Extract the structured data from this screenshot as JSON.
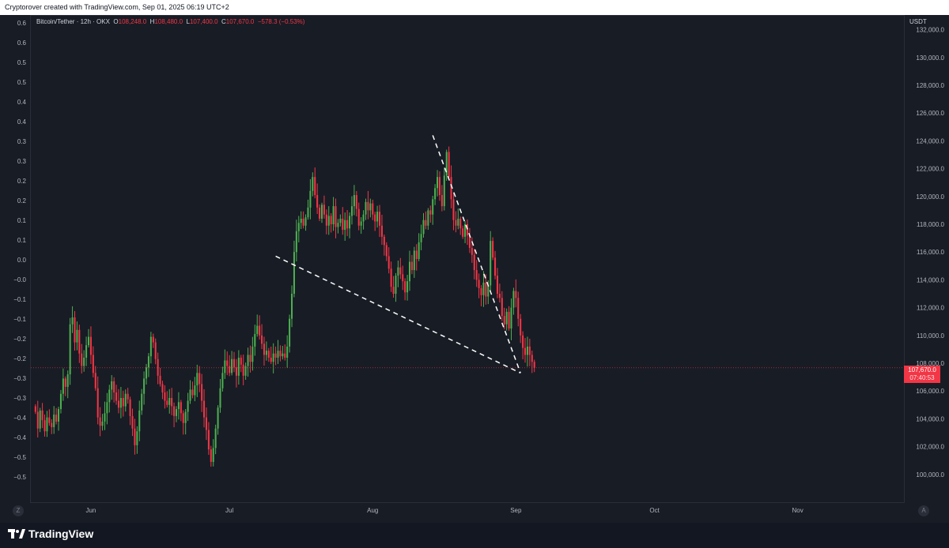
{
  "header": {
    "credit": "Cryptorover created with TradingView.com, Sep 01, 2025 06:19 UTC+2"
  },
  "legend": {
    "symbol": "Bitcoin/Tether · 12h · OKX",
    "o_label": "O",
    "o_value": "108,248.0",
    "h_label": "H",
    "h_value": "108,480.0",
    "l_label": "L",
    "l_value": "107,400.0",
    "c_label": "C",
    "c_value": "107,670.0",
    "change": "−578.3 (−0.53%)"
  },
  "price_axis": {
    "currency": "USDT"
  },
  "last_price": {
    "value": "107,670.0",
    "countdown": "07:40:53"
  },
  "buttons": {
    "left": "Z",
    "right": "A"
  },
  "footer": {
    "brand": "TradingView"
  },
  "colors": {
    "up": "#4caf50",
    "down": "#f23645",
    "background": "#181c25",
    "grid_border": "#2a2e39",
    "text": "#b2b5be",
    "trendline": "#ffffff"
  },
  "chart_data": {
    "type": "candlestick",
    "title": "Bitcoin/Tether · 12h · OKX",
    "xlabel": "",
    "ylabel": "",
    "x_range": [
      "2025-05-19",
      "2025-11-24"
    ],
    "ylim": [
      98000,
      133000
    ],
    "right_axis_ticks": [
      100000,
      102000,
      104000,
      106000,
      108000,
      110000,
      112000,
      114000,
      116000,
      118000,
      120000,
      122000,
      124000,
      126000,
      128000,
      130000,
      132000
    ],
    "right_axis_tick_labels": [
      "100,000.0",
      "102,000.0",
      "104,000.0",
      "106,000.0",
      "108,000.0",
      "110,000.0",
      "112,000.0",
      "114,000.0",
      "116,000.0",
      "118,000.0",
      "120,000.0",
      "122,000.0",
      "124,000.0",
      "126,000.0",
      "128,000.0",
      "130,000.0",
      "132,000.0"
    ],
    "left_axis_tick_labels": [
      "0.6",
      "0.6",
      "0.5",
      "0.5",
      "0.4",
      "0.4",
      "0.3",
      "0.3",
      "0.2",
      "0.2",
      "0.1",
      "0.1",
      "0.0",
      "−0.0",
      "−0.1",
      "−0.1",
      "−0.2",
      "−0.2",
      "−0.3",
      "−0.3",
      "−0.4",
      "−0.4",
      "−0.5",
      "−0.5"
    ],
    "x_tick_labels": [
      "Jun",
      "Jul",
      "Aug",
      "Sep",
      "Oct",
      "Nov"
    ],
    "x_ticks": [
      "2025-06-01",
      "2025-07-01",
      "2025-08-01",
      "2025-09-01",
      "2025-10-01",
      "2025-11-01"
    ],
    "last_close": 107670,
    "series": [
      {
        "closes": [
          104500,
          103300,
          104600,
          103900,
          103100,
          104100,
          103700,
          103400,
          104300,
          103800,
          104700,
          105800,
          106900,
          106300,
          107200,
          110800,
          111300,
          109500,
          110400,
          108700,
          107800,
          108400,
          109300,
          109900,
          108600,
          107300,
          106200,
          104100,
          103500,
          103800,
          104400,
          105200,
          106100,
          106700,
          105900,
          105300,
          104800,
          105500,
          104900,
          105800,
          105400,
          104200,
          103300,
          102100,
          103100,
          104600,
          105800,
          106900,
          107700,
          108500,
          109900,
          109500,
          108300,
          107100,
          106500,
          105900,
          105300,
          105000,
          105500,
          104900,
          104200,
          104700,
          105200,
          104400,
          103700,
          104500,
          105300,
          106100,
          105700,
          106400,
          107300,
          106500,
          105300,
          104100,
          103200,
          101800,
          100900,
          101900,
          103300,
          104800,
          106200,
          107300,
          108200,
          107800,
          107300,
          108300,
          107700,
          107100,
          108400,
          107900,
          107100,
          107800,
          108600,
          108100,
          109200,
          110100,
          110700,
          110000,
          109400,
          108600,
          108900,
          108400,
          108100,
          108700,
          108400,
          108900,
          108500,
          108700,
          108400,
          109200,
          111200,
          113000,
          116000,
          117500,
          118100,
          118400,
          117900,
          118500,
          119200,
          120400,
          121400,
          120100,
          119200,
          118400,
          119400,
          118700,
          117900,
          118600,
          118000,
          119300,
          117800,
          118100,
          118400,
          117600,
          118300,
          117700,
          118600,
          119300,
          120100,
          119100,
          117900,
          118200,
          118700,
          119600,
          119000,
          119500,
          118700,
          118200,
          118900,
          117900,
          117100,
          116500,
          115700,
          114800,
          113500,
          113000,
          114300,
          114900,
          114400,
          113900,
          113100,
          113900,
          115300,
          114700,
          116100,
          115500,
          116700,
          117300,
          118300,
          117900,
          119000,
          118700,
          119800,
          120600,
          121400,
          120100,
          119300,
          121500,
          123200,
          121400,
          119800,
          118300,
          117900,
          118400,
          117700,
          117100,
          118000,
          117200,
          116300,
          115800,
          114700,
          114000,
          113400,
          112900,
          113800,
          112800,
          113600,
          116800,
          115600,
          114300,
          113000,
          112700,
          111400,
          110800,
          111700,
          110500,
          112000,
          113200,
          112700,
          111200,
          110000,
          109100,
          108600,
          109200,
          108600,
          108100,
          107670
        ]
      }
    ],
    "annotations": [
      {
        "type": "trendline",
        "style": "dashed",
        "from": [
          "2025-07-11",
          115700
        ],
        "to": [
          "2025-09-02",
          107300
        ]
      },
      {
        "type": "trendline",
        "style": "dashed",
        "from": [
          "2025-08-14",
          124400
        ],
        "to": [
          "2025-09-02",
          107300
        ]
      }
    ]
  }
}
